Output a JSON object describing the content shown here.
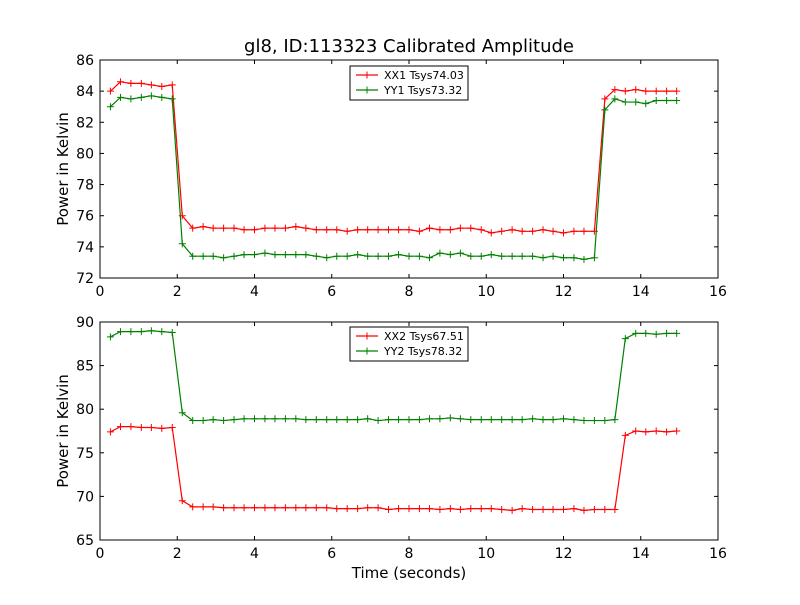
{
  "chart_data": [
    {
      "type": "line",
      "title": "gl8, ID:113323 Calibrated Amplitude",
      "xlabel": "",
      "ylabel": "Power in Kelvin",
      "xlim": [
        0,
        16
      ],
      "ylim": [
        72,
        86
      ],
      "xticks": [
        0,
        2,
        4,
        6,
        8,
        10,
        12,
        14,
        16
      ],
      "yticks": [
        72,
        74,
        76,
        78,
        80,
        82,
        84,
        86
      ],
      "grid": false,
      "legend_position": "top-center",
      "x": [
        0.27,
        0.53,
        0.8,
        1.07,
        1.33,
        1.6,
        1.87,
        2.13,
        2.4,
        2.67,
        2.93,
        3.2,
        3.47,
        3.73,
        4.0,
        4.27,
        4.53,
        4.8,
        5.07,
        5.33,
        5.6,
        5.87,
        6.13,
        6.4,
        6.67,
        6.93,
        7.2,
        7.47,
        7.73,
        8.0,
        8.27,
        8.53,
        8.8,
        9.07,
        9.33,
        9.6,
        9.87,
        10.13,
        10.4,
        10.67,
        10.93,
        11.2,
        11.47,
        11.73,
        12.0,
        12.27,
        12.53,
        12.8,
        13.07,
        13.33,
        13.6,
        13.87,
        14.13,
        14.4,
        14.67,
        14.93
      ],
      "series": [
        {
          "name": "XX1 Tsys74.03",
          "color": "#ff0000",
          "values": [
            84.0,
            84.6,
            84.5,
            84.5,
            84.4,
            84.3,
            84.4,
            76.0,
            75.2,
            75.3,
            75.2,
            75.2,
            75.2,
            75.1,
            75.1,
            75.2,
            75.2,
            75.2,
            75.3,
            75.2,
            75.1,
            75.1,
            75.1,
            75.0,
            75.1,
            75.1,
            75.1,
            75.1,
            75.1,
            75.1,
            75.0,
            75.2,
            75.1,
            75.1,
            75.2,
            75.2,
            75.1,
            74.9,
            75.0,
            75.1,
            75.0,
            75.0,
            75.1,
            75.0,
            74.9,
            75.0,
            75.0,
            75.0,
            83.5,
            84.1,
            84.0,
            84.1,
            84.0,
            84.0,
            84.0,
            84.0
          ]
        },
        {
          "name": "YY1 Tsys73.32",
          "color": "#008000",
          "values": [
            83.0,
            83.6,
            83.5,
            83.6,
            83.7,
            83.6,
            83.5,
            74.2,
            73.4,
            73.4,
            73.4,
            73.3,
            73.4,
            73.5,
            73.5,
            73.6,
            73.5,
            73.5,
            73.5,
            73.5,
            73.4,
            73.3,
            73.4,
            73.4,
            73.5,
            73.4,
            73.4,
            73.4,
            73.5,
            73.4,
            73.4,
            73.3,
            73.6,
            73.5,
            73.6,
            73.4,
            73.4,
            73.5,
            73.4,
            73.4,
            73.4,
            73.4,
            73.3,
            73.4,
            73.3,
            73.3,
            73.2,
            73.3,
            82.8,
            83.5,
            83.3,
            83.3,
            83.2,
            83.4,
            83.4,
            83.4
          ]
        }
      ]
    },
    {
      "type": "line",
      "title": "",
      "xlabel": "Time (seconds)",
      "ylabel": "Power in Kelvin",
      "xlim": [
        0,
        16
      ],
      "ylim": [
        65,
        90
      ],
      "xticks": [
        0,
        2,
        4,
        6,
        8,
        10,
        12,
        14,
        16
      ],
      "yticks": [
        65,
        70,
        75,
        80,
        85,
        90
      ],
      "grid": false,
      "legend_position": "top-center",
      "x": [
        0.27,
        0.53,
        0.8,
        1.07,
        1.33,
        1.6,
        1.87,
        2.13,
        2.4,
        2.67,
        2.93,
        3.2,
        3.47,
        3.73,
        4.0,
        4.27,
        4.53,
        4.8,
        5.07,
        5.33,
        5.6,
        5.87,
        6.13,
        6.4,
        6.67,
        6.93,
        7.2,
        7.47,
        7.73,
        8.0,
        8.27,
        8.53,
        8.8,
        9.07,
        9.33,
        9.6,
        9.87,
        10.13,
        10.4,
        10.67,
        10.93,
        11.2,
        11.47,
        11.73,
        12.0,
        12.27,
        12.53,
        12.8,
        13.07,
        13.33,
        13.6,
        13.87,
        14.13,
        14.4,
        14.67,
        14.93
      ],
      "series": [
        {
          "name": "XX2 Tsys67.51",
          "color": "#ff0000",
          "values": [
            77.4,
            78.0,
            78.0,
            77.9,
            77.9,
            77.8,
            77.9,
            69.5,
            68.8,
            68.8,
            68.8,
            68.7,
            68.7,
            68.7,
            68.7,
            68.7,
            68.7,
            68.7,
            68.7,
            68.7,
            68.7,
            68.7,
            68.6,
            68.6,
            68.6,
            68.7,
            68.7,
            68.5,
            68.6,
            68.6,
            68.6,
            68.6,
            68.5,
            68.6,
            68.5,
            68.6,
            68.6,
            68.6,
            68.5,
            68.4,
            68.6,
            68.5,
            68.5,
            68.5,
            68.5,
            68.6,
            68.4,
            68.5,
            68.5,
            68.5,
            77.0,
            77.5,
            77.4,
            77.5,
            77.4,
            77.5
          ]
        },
        {
          "name": "YY2 Tsys78.32",
          "color": "#008000",
          "values": [
            88.3,
            88.9,
            88.9,
            88.9,
            89.0,
            88.9,
            88.8,
            79.6,
            78.7,
            78.7,
            78.8,
            78.7,
            78.8,
            78.9,
            78.9,
            78.9,
            78.9,
            78.9,
            78.9,
            78.8,
            78.8,
            78.8,
            78.8,
            78.8,
            78.8,
            78.9,
            78.7,
            78.8,
            78.8,
            78.8,
            78.8,
            78.9,
            78.9,
            79.0,
            78.9,
            78.8,
            78.8,
            78.8,
            78.8,
            78.8,
            78.8,
            78.9,
            78.8,
            78.8,
            78.9,
            78.8,
            78.7,
            78.7,
            78.7,
            78.8,
            88.1,
            88.7,
            88.7,
            88.6,
            88.7,
            88.7
          ]
        }
      ]
    }
  ]
}
